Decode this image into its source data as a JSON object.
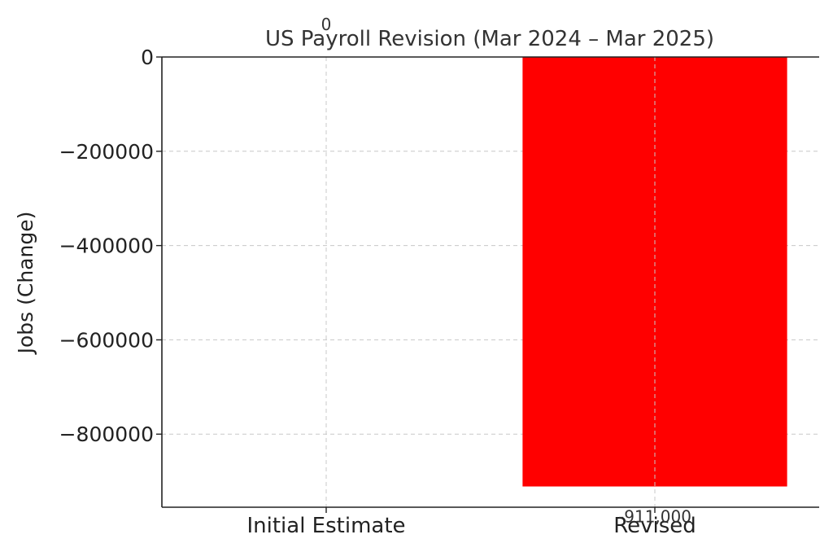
{
  "chart_data": {
    "type": "bar",
    "title": "US Payroll Revision (Mar 2024 – Mar 2025)",
    "ylabel": "Jobs (Change)",
    "xlabel": "",
    "categories": [
      "Initial Estimate",
      "Revised"
    ],
    "values": [
      0,
      -911000
    ],
    "data_labels": [
      "0",
      "-911,000"
    ],
    "ylim": [
      -955000,
      0
    ],
    "yticks": [
      0,
      -200000,
      -400000,
      -600000,
      -800000
    ],
    "ytick_labels": [
      "0",
      "−200000",
      "−400000",
      "−600000",
      "−800000"
    ],
    "grid": true,
    "bar_color": "#ff0000"
  }
}
